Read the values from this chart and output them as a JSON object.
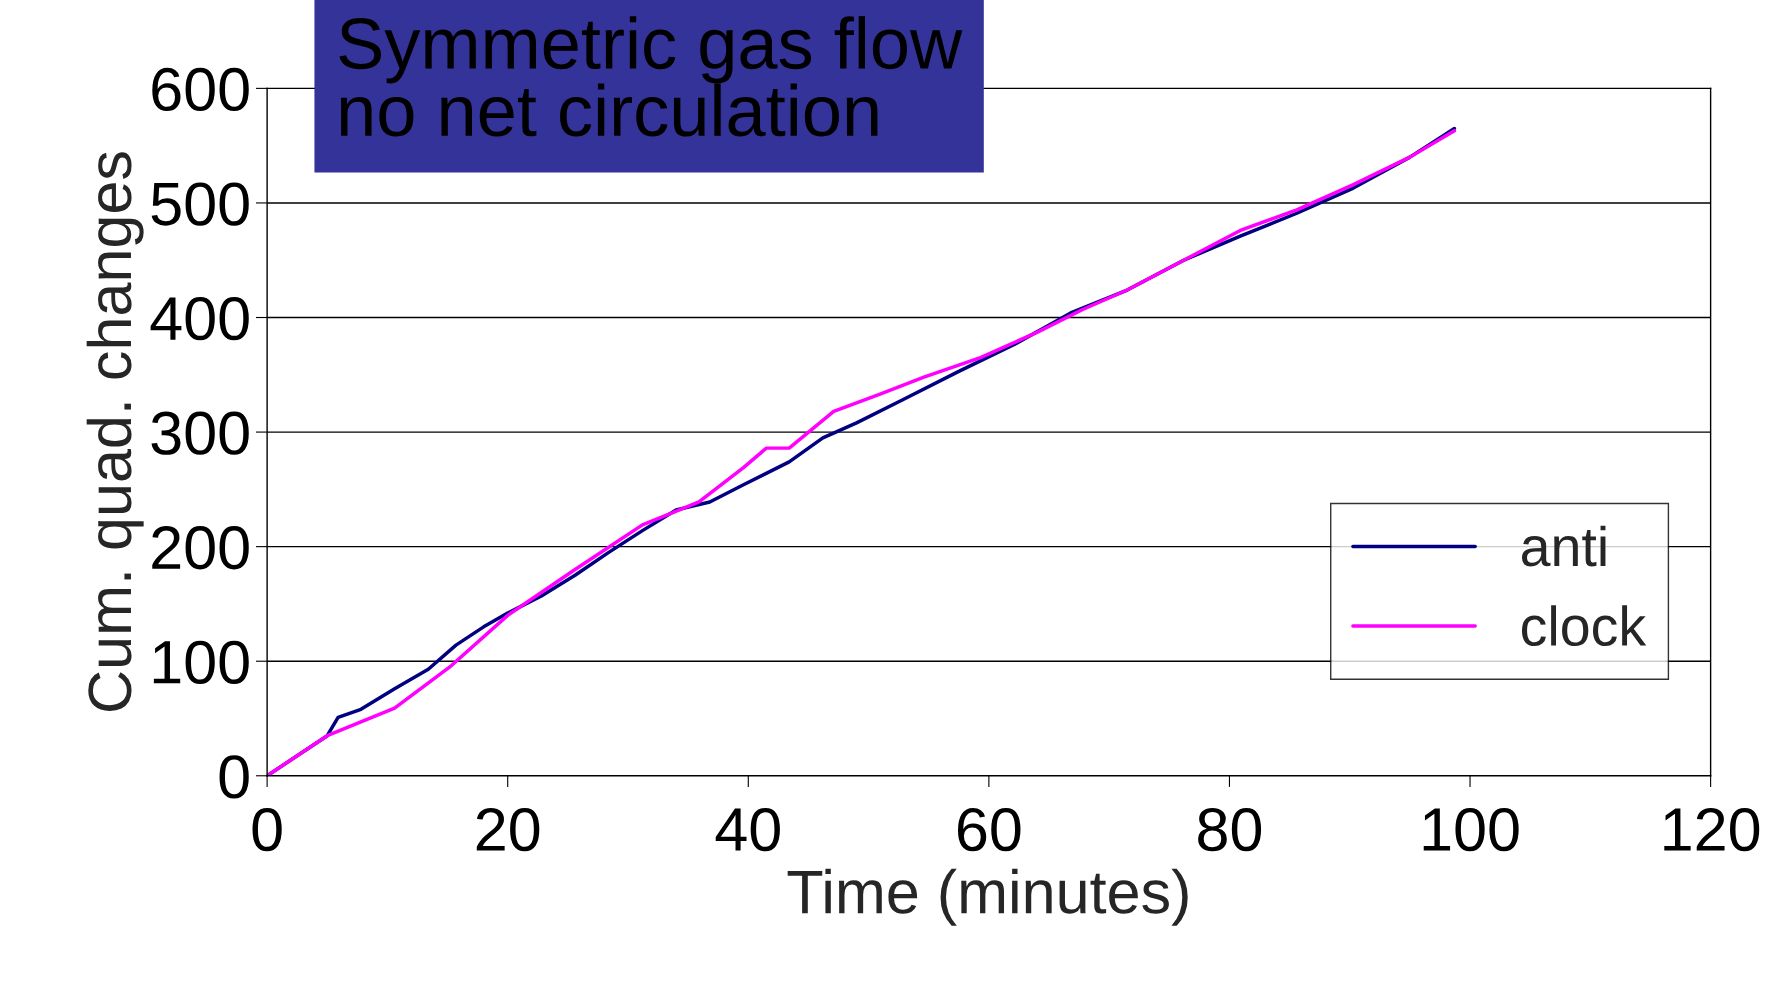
{
  "chart_data": {
    "type": "line",
    "title": "Symmetric gas flow\nno net circulation",
    "xlabel": "Time (minutes)",
    "ylabel": "Cum. quad. changes",
    "xlim": [
      0,
      120
    ],
    "xticks": [
      0,
      20,
      40,
      60,
      80,
      100,
      120
    ],
    "ylim": [
      0,
      600
    ],
    "yticks": [
      0,
      100,
      200,
      300,
      400,
      500,
      600
    ],
    "grid": "y",
    "legend": "bottom right",
    "series": [
      {
        "name": "anti",
        "color": "#000080",
        "x": [
          0,
          5,
          5.9,
          7.8,
          10.6,
          13.4,
          15.7,
          18,
          20,
          22.8,
          25.6,
          28.4,
          31.2,
          34,
          36.8,
          39.6,
          43.4,
          46.2,
          49,
          52.8,
          57.5,
          62.2,
          66.8,
          71.5,
          76.2,
          80.9,
          85.6,
          90.3,
          95,
          98.7
        ],
        "values": [
          0,
          35,
          51,
          58,
          76,
          93,
          114,
          130,
          142,
          157,
          175,
          195,
          214,
          232,
          239,
          254,
          274,
          295,
          308,
          328,
          353,
          377,
          404,
          424,
          450,
          471,
          491,
          513,
          540,
          565
        ]
      },
      {
        "name": "clock",
        "color": "#ff00ff",
        "x": [
          0,
          5,
          10.6,
          15.3,
          20,
          25.6,
          31.2,
          35.9,
          39.6,
          41.5,
          43.4,
          47.1,
          50.9,
          54.6,
          59.3,
          64,
          67.8,
          71.5,
          76.2,
          80.9,
          85.6,
          90.3,
          95,
          98.7
        ],
        "values": [
          0,
          35,
          59,
          96,
          140,
          180,
          219,
          239,
          269,
          286,
          286,
          318,
          333,
          348,
          365,
          387,
          407,
          424,
          450,
          476,
          494,
          516,
          540,
          563
        ]
      }
    ]
  }
}
